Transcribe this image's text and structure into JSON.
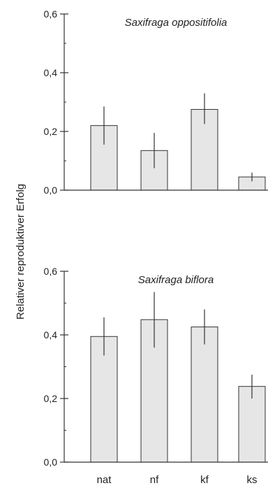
{
  "ylabel": "Relativer reproduktiver Erfolg",
  "colors": {
    "bar_fill": "#e6e6e6",
    "bar_stroke": "#333333",
    "axis": "#333333"
  },
  "chart_data": [
    {
      "type": "bar",
      "title": "Saxifraga oppositifolia",
      "categories": [
        "nat",
        "nf",
        "kf",
        "ks"
      ],
      "values": [
        0.22,
        0.135,
        0.275,
        0.045
      ],
      "error_low": [
        0.155,
        0.075,
        0.225,
        0.03
      ],
      "error_high": [
        0.285,
        0.195,
        0.33,
        0.06
      ],
      "ylim": [
        0,
        0.6
      ],
      "yticks": [
        "0,0",
        "0,2",
        "0,4",
        "0,6"
      ],
      "ytick_values": [
        0,
        0.2,
        0.4,
        0.6
      ],
      "show_category_labels": false
    },
    {
      "type": "bar",
      "title": "Saxifraga biflora",
      "categories": [
        "nat",
        "nf",
        "kf",
        "ks"
      ],
      "values": [
        0.395,
        0.448,
        0.425,
        0.238
      ],
      "error_low": [
        0.335,
        0.36,
        0.37,
        0.2
      ],
      "error_high": [
        0.455,
        0.535,
        0.48,
        0.275
      ],
      "ylim": [
        0,
        0.6
      ],
      "yticks": [
        "0,0",
        "0,2",
        "0,4",
        "0,6"
      ],
      "ytick_values": [
        0,
        0.2,
        0.4,
        0.6
      ],
      "show_category_labels": true
    }
  ]
}
